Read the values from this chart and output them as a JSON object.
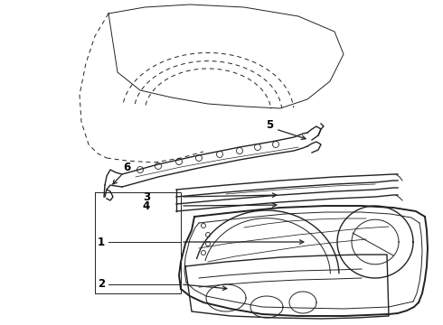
{
  "bg_color": "#ffffff",
  "line_color": "#222222",
  "label_color": "#000000",
  "figsize": [
    4.9,
    3.6
  ],
  "dpi": 100
}
